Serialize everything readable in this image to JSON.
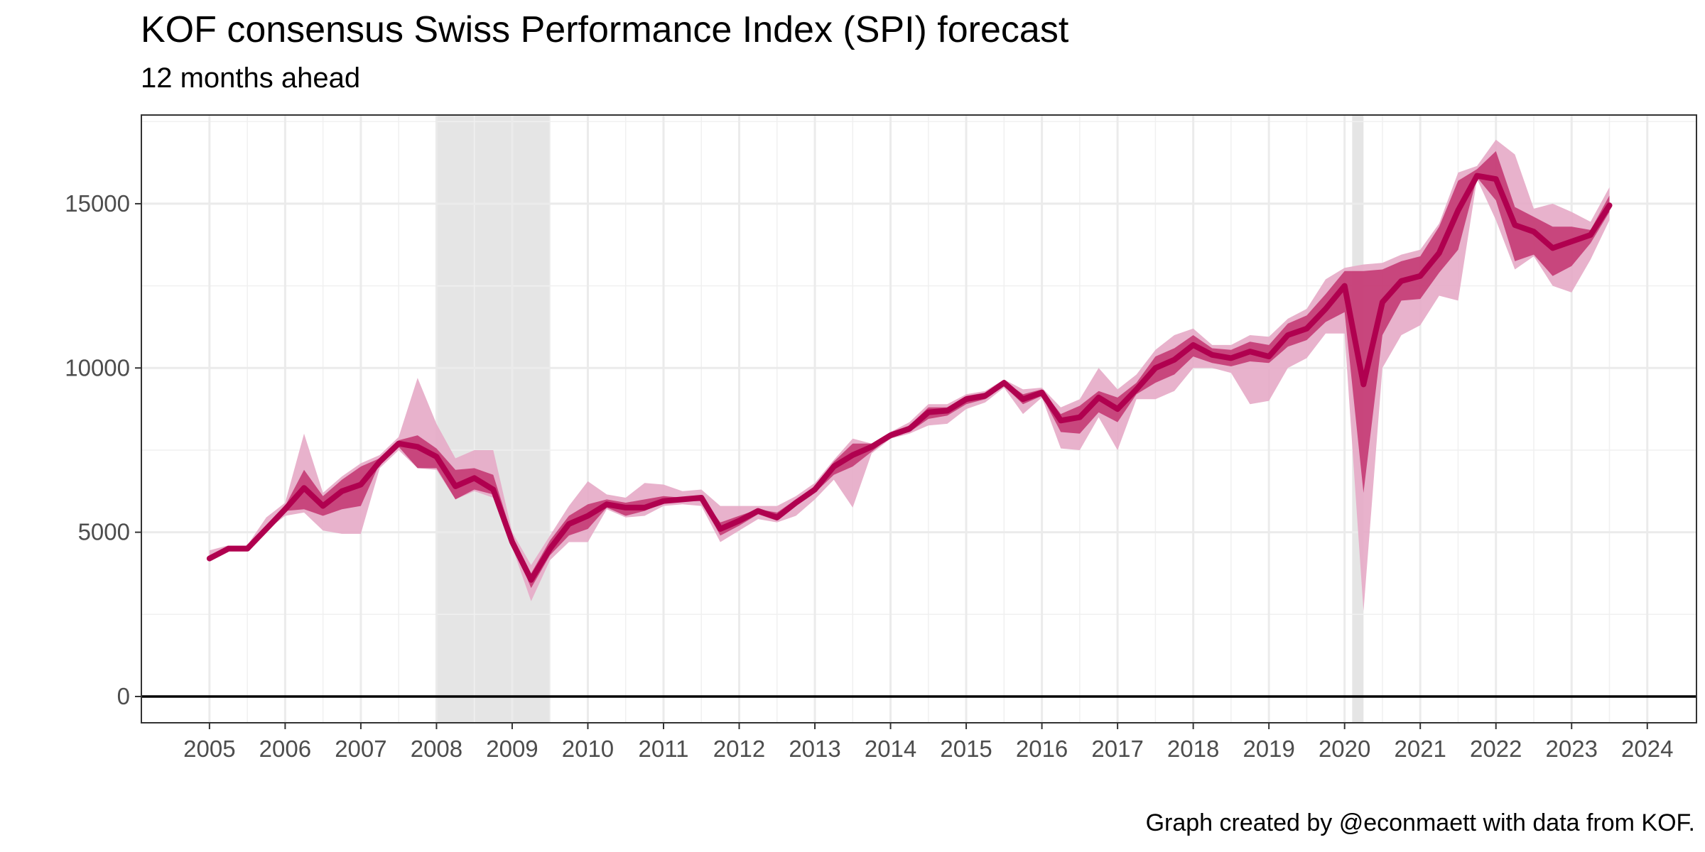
{
  "chart_data": {
    "type": "line",
    "title": "KOF consensus Swiss Performance Index (SPI) forecast",
    "subtitle": "12 months ahead",
    "caption": "Graph created by @econmaett with data from KOF.",
    "xlabel": "",
    "ylabel": "",
    "xlim": [
      2004.1,
      2024.65
    ],
    "ylim": [
      -800,
      17700
    ],
    "x_ticks": [
      2005,
      2006,
      2007,
      2008,
      2009,
      2010,
      2011,
      2012,
      2013,
      2014,
      2015,
      2016,
      2017,
      2018,
      2019,
      2020,
      2021,
      2022,
      2023,
      2024
    ],
    "x_tick_labels": [
      "2005",
      "2006",
      "2007",
      "2008",
      "2009",
      "2010",
      "2011",
      "2012",
      "2013",
      "2014",
      "2015",
      "2016",
      "2017",
      "2018",
      "2019",
      "2020",
      "2021",
      "2022",
      "2023",
      "2024"
    ],
    "y_ticks": [
      0,
      5000,
      10000,
      15000
    ],
    "y_tick_labels": [
      "0",
      "5000",
      "10000",
      "15000"
    ],
    "grid": true,
    "recessions": [
      [
        2008.0,
        2009.5
      ],
      [
        2020.1,
        2020.25
      ]
    ],
    "colors": {
      "line": "#b0004f",
      "inner_band": "#c2326f",
      "outer_band": "#e6aac6",
      "recession": "#e5e5e5",
      "zero_line": "#000000"
    },
    "x": [
      2005.0,
      2005.25,
      2005.5,
      2005.75,
      2006.0,
      2006.25,
      2006.5,
      2006.75,
      2007.0,
      2007.25,
      2007.5,
      2007.75,
      2008.0,
      2008.25,
      2008.5,
      2008.75,
      2009.0,
      2009.25,
      2009.5,
      2009.75,
      2010.0,
      2010.25,
      2010.5,
      2010.75,
      2011.0,
      2011.25,
      2011.5,
      2011.75,
      2012.0,
      2012.25,
      2012.5,
      2012.75,
      2013.0,
      2013.25,
      2013.5,
      2013.75,
      2014.0,
      2014.25,
      2014.5,
      2014.75,
      2015.0,
      2015.25,
      2015.5,
      2015.75,
      2016.0,
      2016.25,
      2016.5,
      2016.75,
      2017.0,
      2017.25,
      2017.5,
      2017.75,
      2018.0,
      2018.25,
      2018.5,
      2018.75,
      2019.0,
      2019.25,
      2019.5,
      2019.75,
      2020.0,
      2020.25,
      2020.5,
      2020.75,
      2021.0,
      2021.25,
      2021.5,
      2021.75,
      2022.0,
      2022.25,
      2022.5,
      2022.75,
      2023.0,
      2023.25,
      2023.5
    ],
    "series": [
      {
        "name": "median",
        "values": [
          4200,
          4500,
          4500,
          5100,
          5700,
          6350,
          5800,
          6250,
          6450,
          7150,
          7700,
          7600,
          7300,
          6400,
          6650,
          6300,
          4700,
          3550,
          4500,
          5250,
          5500,
          5850,
          5750,
          5750,
          5950,
          6000,
          6050,
          5100,
          5350,
          5650,
          5450,
          5900,
          6300,
          7000,
          7350,
          7600,
          7950,
          8150,
          8650,
          8700,
          9050,
          9150,
          9550,
          9050,
          9250,
          8400,
          8500,
          9100,
          8750,
          9350,
          10000,
          10250,
          10700,
          10400,
          10300,
          10500,
          10350,
          11000,
          11200,
          11800,
          12500,
          9500,
          12000,
          12650,
          12800,
          13500,
          14800,
          15850,
          15750,
          14350,
          14150,
          13650,
          13850,
          14050,
          14950
        ]
      },
      {
        "name": "inner_low",
        "values": [
          4200,
          4500,
          4500,
          5100,
          5650,
          5700,
          5500,
          5700,
          5800,
          7100,
          7600,
          6950,
          6950,
          6000,
          6300,
          6150,
          4700,
          3300,
          4300,
          4900,
          5100,
          5750,
          5500,
          5650,
          5900,
          5950,
          5950,
          4900,
          5200,
          5550,
          5350,
          5800,
          6200,
          6750,
          7000,
          7450,
          7900,
          8050,
          8450,
          8550,
          8900,
          9050,
          9450,
          8900,
          9150,
          8050,
          8000,
          8650,
          8350,
          9200,
          9550,
          9800,
          10350,
          10150,
          10050,
          10200,
          10150,
          10650,
          10850,
          11400,
          11700,
          6200,
          11000,
          12050,
          12100,
          12900,
          13600,
          15800,
          15100,
          13250,
          13450,
          12800,
          13100,
          13800,
          14750
        ]
      },
      {
        "name": "inner_high",
        "values": [
          4300,
          4550,
          4550,
          5200,
          5800,
          6900,
          6100,
          6600,
          7000,
          7250,
          7800,
          7950,
          7550,
          6900,
          6950,
          6750,
          4900,
          3750,
          4750,
          5500,
          5850,
          6000,
          5900,
          6000,
          6100,
          6050,
          6100,
          5300,
          5500,
          5700,
          5600,
          6000,
          6400,
          7150,
          7700,
          7700,
          8050,
          8250,
          8800,
          8800,
          9150,
          9250,
          9600,
          9200,
          9350,
          8600,
          8850,
          9300,
          9100,
          9550,
          10350,
          10600,
          11000,
          10600,
          10550,
          10800,
          10700,
          11350,
          11600,
          12250,
          12950,
          12950,
          13000,
          13250,
          13400,
          14300,
          15700,
          16050,
          16600,
          14900,
          14600,
          14300,
          14300,
          14200,
          15250
        ]
      },
      {
        "name": "outer_low",
        "values": [
          4150,
          4450,
          4450,
          5050,
          5500,
          5600,
          5050,
          4950,
          4950,
          6950,
          7500,
          6950,
          6900,
          6000,
          6250,
          6050,
          4550,
          2900,
          4150,
          4700,
          4700,
          5700,
          5450,
          5500,
          5800,
          5850,
          5800,
          4700,
          5050,
          5400,
          5300,
          5500,
          6000,
          6600,
          5750,
          7400,
          7850,
          8000,
          8250,
          8300,
          8750,
          8950,
          9400,
          8600,
          9100,
          7550,
          7500,
          8500,
          7500,
          9050,
          9050,
          9300,
          10000,
          10000,
          9850,
          8900,
          9000,
          10000,
          10300,
          11050,
          11050,
          2600,
          10000,
          11000,
          11300,
          12200,
          12050,
          15750,
          14500,
          13000,
          13400,
          12500,
          12300,
          13300,
          14500
        ]
      },
      {
        "name": "outer_high",
        "values": [
          4450,
          4600,
          4600,
          5450,
          5900,
          8000,
          6200,
          6700,
          7100,
          7350,
          7900,
          9700,
          8300,
          7250,
          7500,
          7500,
          5000,
          4000,
          4900,
          5800,
          6550,
          6150,
          6050,
          6500,
          6450,
          6250,
          6300,
          5800,
          5800,
          5800,
          5800,
          6100,
          6500,
          7200,
          7850,
          7700,
          8050,
          8350,
          8900,
          8900,
          9200,
          9300,
          9650,
          9350,
          9400,
          8800,
          9050,
          10000,
          9350,
          9800,
          10550,
          11000,
          11200,
          10700,
          10700,
          11000,
          10950,
          11500,
          11800,
          12700,
          13050,
          13150,
          13200,
          13450,
          13600,
          14400,
          15950,
          16150,
          16950,
          16500,
          14850,
          15000,
          14750,
          14450,
          15500
        ]
      }
    ]
  }
}
